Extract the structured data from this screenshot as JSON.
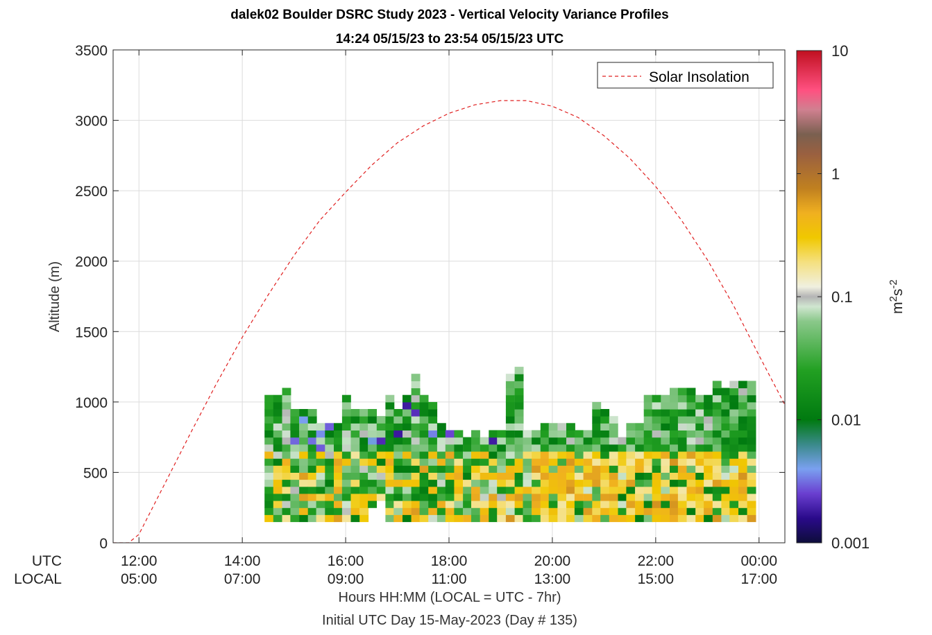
{
  "title_line1": "dalek02 Boulder DSRC Study 2023 - Vertical Velocity Variance Profiles",
  "title_line2": "14:24 05/15/23 to 23:54 05/15/23  UTC",
  "y_label": "Altitude (m)",
  "x_label": "Hours HH:MM  (LOCAL = UTC - 7hr)",
  "x_label2": "Initial UTC Day 15-May-2023 (Day # 135)",
  "row_label_utc": "UTC",
  "row_label_local": "LOCAL",
  "legend_label": "Solar Insolation",
  "colorbar": {
    "unit_base": "m",
    "unit_exp1": "2",
    "unit_mid": "s",
    "unit_exp2": "-2",
    "ticks": [
      {
        "value": 10,
        "label": "10"
      },
      {
        "value": 1,
        "label": "1"
      },
      {
        "value": 0.1,
        "label": "0.1"
      },
      {
        "value": 0.01,
        "label": "0.01"
      },
      {
        "value": 0.001,
        "label": "0.001"
      }
    ],
    "range": [
      0.001,
      10
    ],
    "scale": "log",
    "stops": [
      [
        0.0,
        "#0d0d3a"
      ],
      [
        0.05,
        "#2a0a8a"
      ],
      [
        0.1,
        "#6a3fd0"
      ],
      [
        0.15,
        "#7aa0f0"
      ],
      [
        0.2,
        "#3a8a8a"
      ],
      [
        0.25,
        "#007a10"
      ],
      [
        0.35,
        "#22a022"
      ],
      [
        0.45,
        "#8ac88a"
      ],
      [
        0.48,
        "#d0e6d0"
      ],
      [
        0.5,
        "#b4b4b4"
      ],
      [
        0.52,
        "#f0f0e0"
      ],
      [
        0.57,
        "#f5e080"
      ],
      [
        0.62,
        "#f0c800"
      ],
      [
        0.67,
        "#f0b020"
      ],
      [
        0.72,
        "#c08020"
      ],
      [
        0.79,
        "#9a6040"
      ],
      [
        0.83,
        "#7a6050"
      ],
      [
        0.88,
        "#d08090"
      ],
      [
        0.92,
        "#ff5080"
      ],
      [
        1.0,
        "#c01020"
      ]
    ]
  },
  "chart_data": {
    "type": "heatmap",
    "title": "dalek02 Boulder DSRC Study 2023 - Vertical Velocity Variance Profiles",
    "xlabel": "Hours HH:MM  (LOCAL = UTC - 7hr)",
    "ylabel": "Altitude (m)",
    "xlim_hours": [
      11.5,
      24.5
    ],
    "ylim": [
      0,
      3500
    ],
    "yticks": [
      0,
      500,
      1000,
      1500,
      2000,
      2500,
      3000,
      3500
    ],
    "xticks": [
      {
        "hour": 12,
        "utc": "12:00",
        "local": "05:00"
      },
      {
        "hour": 14,
        "utc": "14:00",
        "local": "07:00"
      },
      {
        "hour": 16,
        "utc": "16:00",
        "local": "09:00"
      },
      {
        "hour": 18,
        "utc": "18:00",
        "local": "11:00"
      },
      {
        "hour": 20,
        "utc": "20:00",
        "local": "13:00"
      },
      {
        "hour": 22,
        "utc": "22:00",
        "local": "15:00"
      },
      {
        "hour": 24,
        "utc": "00:00",
        "local": "17:00"
      }
    ],
    "grid": true,
    "legend_position": "top-right",
    "series": [
      {
        "name": "Solar Insolation",
        "style": "dashed",
        "color": "#e02020",
        "points": [
          [
            11.5,
            0
          ],
          [
            11.8,
            0
          ],
          [
            12,
            60
          ],
          [
            12.5,
            420
          ],
          [
            13,
            780
          ],
          [
            13.5,
            1130
          ],
          [
            14,
            1460
          ],
          [
            14.5,
            1760
          ],
          [
            15,
            2040
          ],
          [
            15.5,
            2290
          ],
          [
            16,
            2490
          ],
          [
            16.5,
            2680
          ],
          [
            17,
            2840
          ],
          [
            17.5,
            2960
          ],
          [
            18,
            3050
          ],
          [
            18.5,
            3110
          ],
          [
            19,
            3140
          ],
          [
            19.5,
            3140
          ],
          [
            20,
            3100
          ],
          [
            20.5,
            3020
          ],
          [
            21,
            2890
          ],
          [
            21.5,
            2730
          ],
          [
            22,
            2530
          ],
          [
            22.5,
            2290
          ],
          [
            23,
            2010
          ],
          [
            23.5,
            1690
          ],
          [
            24,
            1330
          ],
          [
            24.5,
            980
          ]
        ]
      }
    ],
    "heatmap": {
      "value_units": "m2 s-2",
      "bin_height_m": 50,
      "column_starts_hours": [
        14.43,
        14.6,
        14.77,
        14.93,
        15.1,
        15.27,
        15.43,
        15.6,
        15.77,
        15.93,
        16.1,
        16.27,
        16.43,
        16.6,
        16.77,
        16.93,
        17.1,
        17.27,
        17.43,
        17.6,
        17.77,
        17.93,
        18.1,
        18.27,
        18.43,
        18.6,
        18.77,
        18.93,
        19.1,
        19.27,
        19.43,
        19.6,
        19.77,
        19.93,
        20.1,
        20.27,
        20.43,
        20.6,
        20.77,
        20.93,
        21.1,
        21.27,
        21.43,
        21.6,
        21.77,
        21.93,
        22.1,
        22.27,
        22.43,
        22.6,
        22.77,
        22.93,
        23.1,
        23.27,
        23.43,
        23.6,
        23.77
      ],
      "column_bottom_m": [
        150,
        150,
        150,
        150,
        150,
        150,
        150,
        150,
        150,
        150,
        150,
        150,
        250,
        300,
        150,
        150,
        150,
        150,
        150,
        150,
        150,
        150,
        150,
        150,
        150,
        150,
        150,
        150,
        150,
        150,
        150,
        150,
        150,
        150,
        150,
        150,
        150,
        150,
        150,
        150,
        150,
        150,
        150,
        150,
        150,
        150,
        150,
        150,
        150,
        150,
        150,
        150,
        150,
        150,
        150,
        150,
        150
      ],
      "column_top_m": [
        1050,
        1050,
        1100,
        950,
        950,
        950,
        850,
        850,
        850,
        1050,
        950,
        950,
        950,
        900,
        1050,
        950,
        1050,
        1200,
        1050,
        1000,
        850,
        800,
        800,
        750,
        800,
        750,
        800,
        800,
        1200,
        1250,
        800,
        800,
        850,
        850,
        850,
        850,
        800,
        800,
        1000,
        950,
        900,
        750,
        850,
        850,
        1050,
        1050,
        1050,
        1100,
        1100,
        1100,
        1050,
        1050,
        1150,
        1100,
        1150,
        1150,
        1150
      ],
      "description_of_values": "Variance roughly 0.005-0.05 (green) aloft, 0.1-0.5 (yellow) near surface in afternoon, with scattered low values (<0.003, blue/purple) late morning"
    }
  }
}
